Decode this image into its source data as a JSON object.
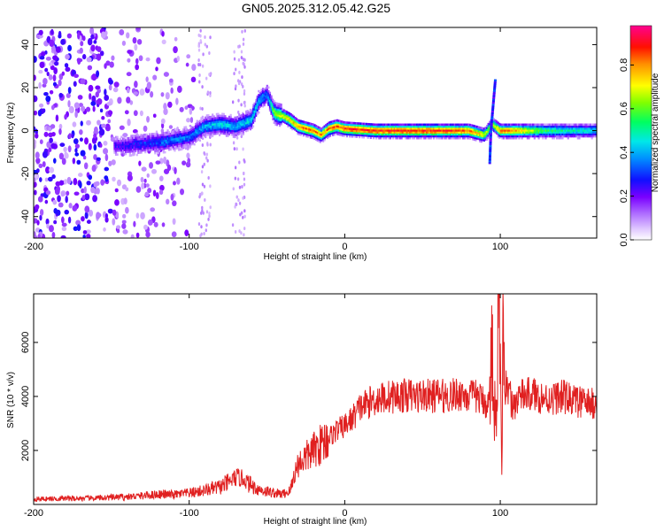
{
  "figure": {
    "title": "GN05.2025.312.05.42.G25"
  },
  "chart_data": [
    {
      "type": "heatmap",
      "xlabel": "Height of straight line (km)",
      "ylabel": "Frequency (Hz)",
      "xlim": [
        -200,
        162
      ],
      "ylim": [
        -50,
        48
      ],
      "xticks": [
        "-200",
        "-100",
        "0",
        "100"
      ],
      "yticks": [
        "40",
        "20",
        "0",
        "-20",
        "-40"
      ],
      "colorbar": {
        "label": "Normalized spectral amplitude",
        "range": [
          0,
          0.98
        ],
        "ticks": [
          "0.0",
          "0.2",
          "0.4",
          "0.6",
          "0.8"
        ],
        "colors": [
          "#ffffff",
          "#cc99ff",
          "#7a00ff",
          "#0000ff",
          "#00c8ff",
          "#00ff80",
          "#90ff00",
          "#ffff00",
          "#ff8000",
          "#ff0000",
          "#ff0080"
        ]
      },
      "ridge": [
        {
          "x": -145,
          "f": -7,
          "a": 0.25
        },
        {
          "x": -130,
          "f": -6,
          "a": 0.3
        },
        {
          "x": -115,
          "f": -5,
          "a": 0.35
        },
        {
          "x": -100,
          "f": -3,
          "a": 0.35
        },
        {
          "x": -90,
          "f": 2,
          "a": 0.4
        },
        {
          "x": -80,
          "f": 3,
          "a": 0.45
        },
        {
          "x": -70,
          "f": 2,
          "a": 0.4
        },
        {
          "x": -60,
          "f": 5,
          "a": 0.45
        },
        {
          "x": -55,
          "f": 14,
          "a": 0.4
        },
        {
          "x": -50,
          "f": 17,
          "a": 0.35
        },
        {
          "x": -45,
          "f": 8,
          "a": 0.65
        },
        {
          "x": -40,
          "f": 7,
          "a": 0.7
        },
        {
          "x": -35,
          "f": 5,
          "a": 0.75
        },
        {
          "x": -30,
          "f": 2,
          "a": 0.8
        },
        {
          "x": -25,
          "f": 1,
          "a": 0.85
        },
        {
          "x": -20,
          "f": 0,
          "a": 0.85
        },
        {
          "x": -15,
          "f": -2,
          "a": 0.8
        },
        {
          "x": -10,
          "f": 1,
          "a": 0.85
        },
        {
          "x": -5,
          "f": 2,
          "a": 0.85
        },
        {
          "x": 0,
          "f": 1,
          "a": 0.9
        },
        {
          "x": 20,
          "f": 0,
          "a": 0.9
        },
        {
          "x": 40,
          "f": 0,
          "a": 0.9
        },
        {
          "x": 60,
          "f": 0,
          "a": 0.9
        },
        {
          "x": 80,
          "f": 0,
          "a": 0.85
        },
        {
          "x": 90,
          "f": -2,
          "a": 0.7
        },
        {
          "x": 95,
          "f": 3,
          "a": 0.6
        },
        {
          "x": 100,
          "f": 0,
          "a": 0.85
        },
        {
          "x": 110,
          "f": 0,
          "a": 0.8
        },
        {
          "x": 130,
          "f": 0,
          "a": 0.55
        },
        {
          "x": 162,
          "f": 0,
          "a": 0.45
        }
      ]
    },
    {
      "type": "line",
      "xlabel": "Height of straight line (km)",
      "ylabel": "SNR (10 * v/v)",
      "xlim": [
        -200,
        162
      ],
      "ylim": [
        0,
        7800
      ],
      "xticks": [
        "-200",
        "-100",
        "0",
        "100"
      ],
      "yticks": [
        "2000",
        "4000",
        "6000"
      ],
      "color": "#e02020",
      "series": [
        {
          "x": [
            -200,
            -180,
            -160,
            -150,
            -140,
            -130,
            -120,
            -110,
            -100,
            -90,
            -80,
            -75,
            -70,
            -65,
            -60,
            -55,
            -50,
            -45,
            -40,
            -35,
            -33,
            -30,
            -25,
            -20,
            -15,
            -10,
            -5,
            0,
            5,
            10,
            15,
            20,
            25,
            30,
            35,
            40,
            45,
            50,
            55,
            60,
            65,
            70,
            75,
            80,
            85,
            90,
            93,
            95,
            97,
            99,
            100,
            101,
            102,
            103,
            105,
            108,
            112,
            120,
            130,
            140,
            150,
            162
          ],
          "y": [
            200,
            220,
            230,
            260,
            280,
            320,
            380,
            360,
            420,
            520,
            650,
            800,
            1000,
            950,
            700,
            550,
            480,
            420,
            380,
            500,
            1000,
            1500,
            1750,
            2000,
            2250,
            2500,
            2750,
            2900,
            3200,
            3600,
            3750,
            3900,
            3950,
            4000,
            4000,
            4050,
            4000,
            4050,
            4000,
            4050,
            4000,
            4050,
            4100,
            4000,
            4000,
            3800,
            3700,
            6200,
            2400,
            7100,
            4600,
            800,
            7800,
            3400,
            4300,
            3600,
            4000,
            4100,
            3900,
            4000,
            3800,
            3700
          ]
        }
      ]
    }
  ]
}
